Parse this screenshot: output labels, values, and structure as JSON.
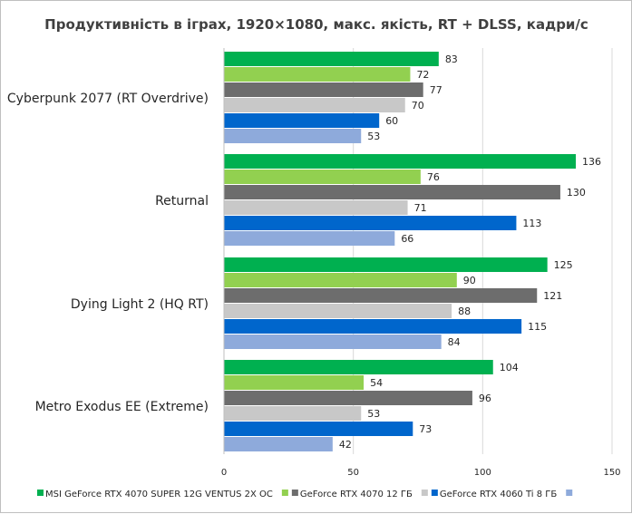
{
  "chart_data": {
    "type": "bar",
    "orientation": "horizontal",
    "title": "Продуктивність в іграх, 1920×1080, макс. якість, RT + DLSS, кадри/с",
    "categories": [
      "Cyberpunk 2077 (RT Overdrive)",
      "Returnal",
      "Dying Light 2 (HQ RT)",
      "Metro Exodus EE (Extreme)"
    ],
    "series": [
      {
        "name": "MSI GeForce RTX 4070 SUPER 12G VENTUS 2X OC",
        "color": "#00b050",
        "values": [
          83,
          136,
          125,
          104
        ]
      },
      {
        "name": "",
        "color": "#92d050",
        "values": [
          72,
          76,
          90,
          54
        ]
      },
      {
        "name": "GeForce RTX 4070 12 ГБ",
        "color": "#6d6d6d",
        "values": [
          77,
          130,
          121,
          96
        ]
      },
      {
        "name": "",
        "color": "#c8c8c8",
        "values": [
          70,
          71,
          88,
          53
        ]
      },
      {
        "name": "GeForce RTX 4060 Ti 8 ГБ",
        "color": "#0066cc",
        "values": [
          60,
          113,
          115,
          73
        ]
      },
      {
        "name": "",
        "color": "#8eaadb",
        "values": [
          53,
          66,
          84,
          42
        ]
      }
    ],
    "xlim": [
      0,
      150
    ],
    "xticks": [
      0,
      50,
      100,
      150
    ],
    "grid": true,
    "legend_position": "bottom",
    "data_labels": true
  }
}
